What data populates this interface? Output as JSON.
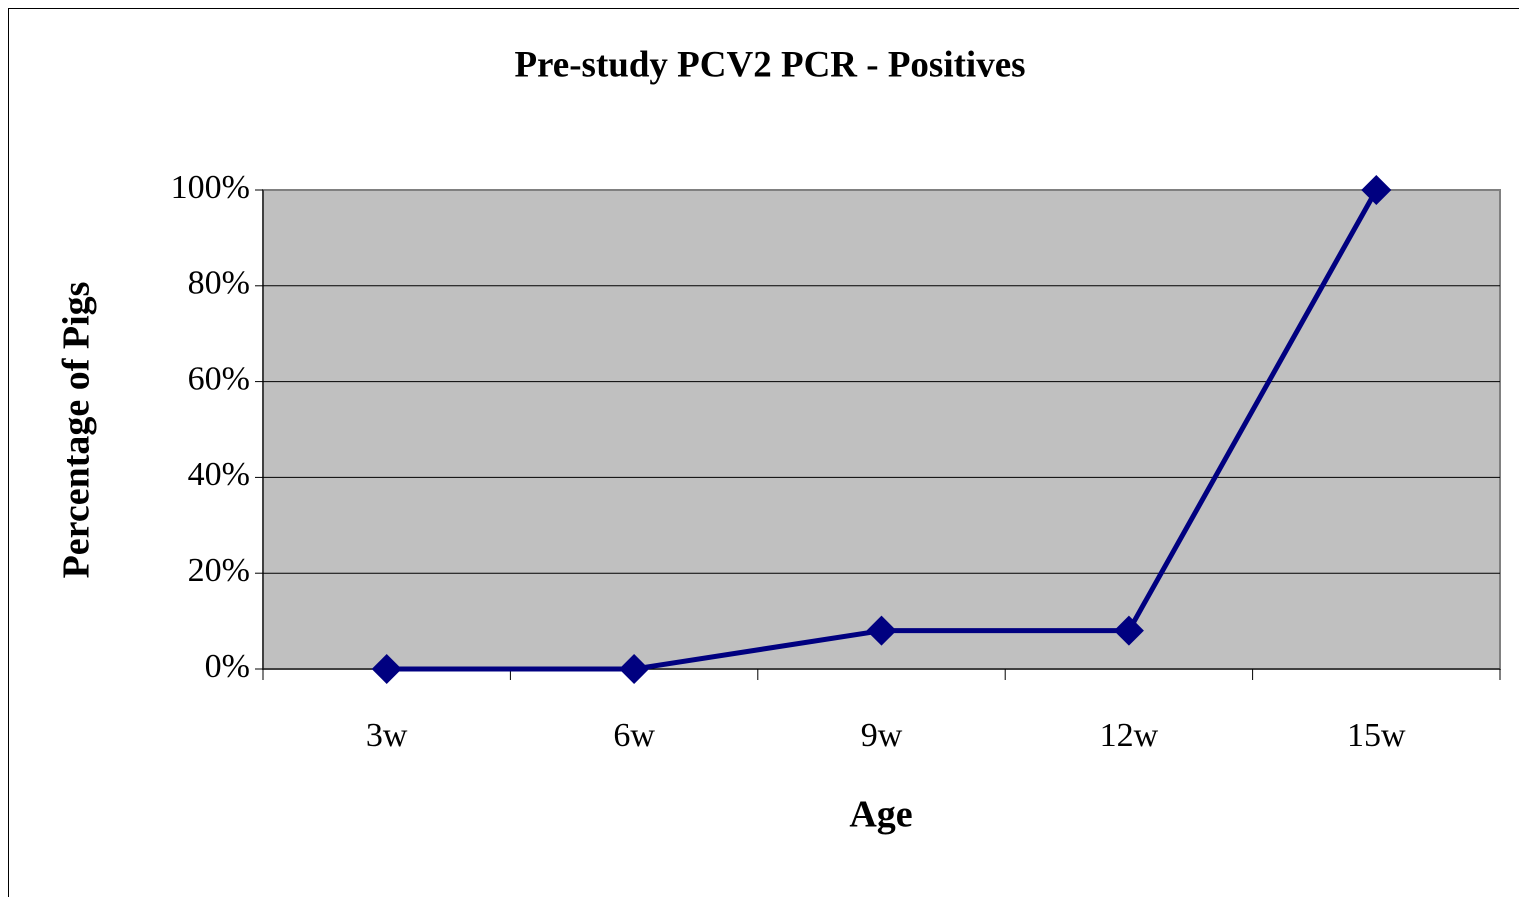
{
  "chart_data": {
    "type": "line",
    "title": "Pre-study PCV2 PCR - Positives",
    "x_label": "Age",
    "y_label": "Percentage of Pigs",
    "categories": [
      "3w",
      "6w",
      "9w",
      "12w",
      "15w"
    ],
    "values": [
      0,
      0,
      8,
      8,
      100
    ],
    "color": "#000080",
    "ylim": [
      0,
      100
    ],
    "yticks": [
      {
        "value": 0,
        "label": "0%"
      },
      {
        "value": 20,
        "label": "20%"
      },
      {
        "value": 40,
        "label": "40%"
      },
      {
        "value": 60,
        "label": "60%"
      },
      {
        "value": 80,
        "label": "80%"
      },
      {
        "value": 100,
        "label": "100%"
      }
    ],
    "grid": true
  }
}
